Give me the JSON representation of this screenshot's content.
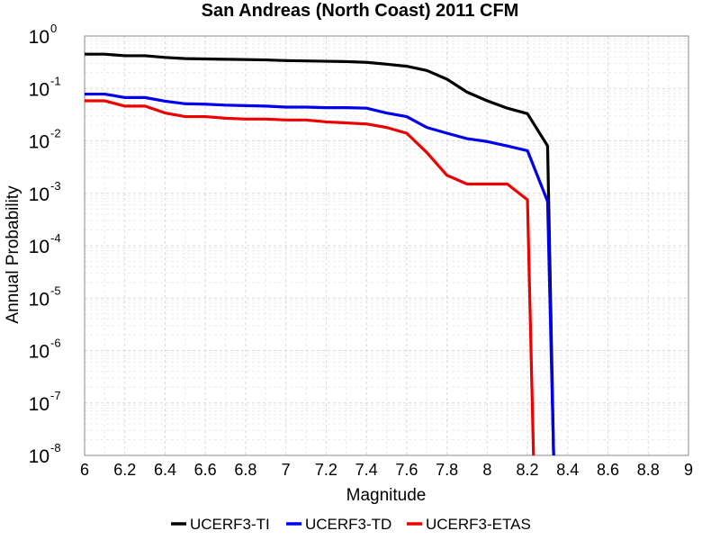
{
  "chart_data": {
    "type": "line",
    "title": "San Andreas (North Coast) 2011 CFM",
    "xlabel": "Magnitude",
    "ylabel": "Annual Probability",
    "xlim": [
      6,
      9
    ],
    "ylim": [
      1e-08,
      1
    ],
    "yscale": "log",
    "grid": true,
    "legend_position": "bottom",
    "x_ticks": [
      "6",
      "6.2",
      "6.4",
      "6.6",
      "6.8",
      "7",
      "7.2",
      "7.4",
      "7.6",
      "7.8",
      "8",
      "8.2",
      "8.4",
      "8.6",
      "8.8",
      "9"
    ],
    "y_ticks": [
      {
        "base": "10",
        "exp": "0"
      },
      {
        "base": "10",
        "exp": "-1"
      },
      {
        "base": "10",
        "exp": "-2"
      },
      {
        "base": "10",
        "exp": "-3"
      },
      {
        "base": "10",
        "exp": "-4"
      },
      {
        "base": "10",
        "exp": "-5"
      },
      {
        "base": "10",
        "exp": "-6"
      },
      {
        "base": "10",
        "exp": "-7"
      },
      {
        "base": "10",
        "exp": "-8"
      }
    ],
    "series": [
      {
        "name": "UCERF3-TI",
        "color": "#000000",
        "x": [
          6.0,
          6.1,
          6.2,
          6.3,
          6.4,
          6.5,
          6.6,
          6.7,
          6.8,
          6.9,
          7.0,
          7.1,
          7.2,
          7.3,
          7.4,
          7.5,
          7.6,
          7.7,
          7.8,
          7.9,
          8.0,
          8.1,
          8.2,
          8.3,
          8.33,
          8.34
        ],
        "y": [
          0.45,
          0.45,
          0.42,
          0.42,
          0.39,
          0.37,
          0.365,
          0.36,
          0.355,
          0.35,
          0.34,
          0.335,
          0.33,
          0.325,
          0.315,
          0.29,
          0.265,
          0.22,
          0.15,
          0.085,
          0.058,
          0.042,
          0.033,
          0.008,
          1e-08,
          1e-09
        ]
      },
      {
        "name": "UCERF3-TD",
        "color": "#0000ee",
        "x": [
          6.0,
          6.1,
          6.2,
          6.3,
          6.4,
          6.5,
          6.6,
          6.7,
          6.8,
          6.9,
          7.0,
          7.1,
          7.2,
          7.3,
          7.4,
          7.5,
          7.6,
          7.7,
          7.8,
          7.9,
          8.0,
          8.1,
          8.2,
          8.3,
          8.33,
          8.34
        ],
        "y": [
          0.078,
          0.078,
          0.067,
          0.067,
          0.057,
          0.051,
          0.05,
          0.048,
          0.047,
          0.046,
          0.044,
          0.044,
          0.043,
          0.043,
          0.042,
          0.034,
          0.029,
          0.018,
          0.014,
          0.011,
          0.0097,
          0.008,
          0.0065,
          0.0007,
          1e-08,
          1e-09
        ]
      },
      {
        "name": "UCERF3-ETAS",
        "color": "#ee0000",
        "x": [
          6.0,
          6.1,
          6.2,
          6.3,
          6.4,
          6.5,
          6.6,
          6.7,
          6.8,
          6.9,
          7.0,
          7.1,
          7.2,
          7.3,
          7.4,
          7.5,
          7.6,
          7.7,
          7.8,
          7.9,
          8.0,
          8.1,
          8.2,
          8.23,
          8.24
        ],
        "y": [
          0.058,
          0.058,
          0.046,
          0.046,
          0.034,
          0.029,
          0.029,
          0.027,
          0.026,
          0.026,
          0.025,
          0.025,
          0.023,
          0.022,
          0.021,
          0.018,
          0.014,
          0.006,
          0.0022,
          0.0015,
          0.0015,
          0.0015,
          0.00075,
          1e-08,
          1e-09
        ]
      }
    ]
  }
}
